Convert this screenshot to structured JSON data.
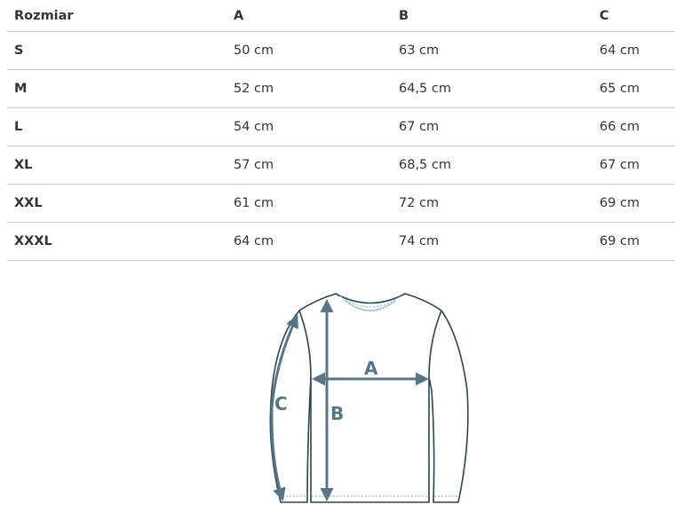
{
  "table": {
    "headers": [
      "Rozmiar",
      "A",
      "B",
      "C"
    ],
    "rows": [
      [
        "S",
        "50 cm",
        "63 cm",
        "64 cm"
      ],
      [
        "M",
        "52 cm",
        "64,5 cm",
        "65 cm"
      ],
      [
        "L",
        "54 cm",
        "67 cm",
        "66 cm"
      ],
      [
        "XL",
        "57 cm",
        "68,5 cm",
        "67 cm"
      ],
      [
        "XXL",
        "61 cm",
        "72 cm",
        "69 cm"
      ],
      [
        "XXXL",
        "64 cm",
        "74 cm",
        "69 cm"
      ]
    ]
  },
  "diagram": {
    "labels": {
      "a": "A",
      "b": "B",
      "c": "C"
    },
    "colors": {
      "outline": "#2c4350",
      "arrow": "#5a7583",
      "stitch": "#a9c3d6"
    }
  }
}
